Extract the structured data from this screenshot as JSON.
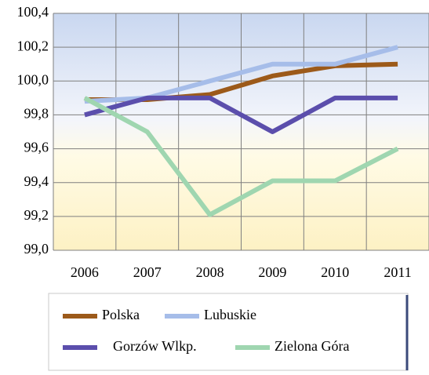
{
  "chart_data": {
    "type": "line",
    "categories": [
      "2006",
      "2007",
      "2008",
      "2009",
      "2010",
      "2011"
    ],
    "series": [
      {
        "name": "Polska",
        "color": "#9c5a1a",
        "values": [
          99.89,
          99.89,
          99.92,
          100.03,
          100.09,
          100.1
        ]
      },
      {
        "name": "Lubuskie",
        "color": "#a6bde9",
        "values": [
          99.88,
          99.9,
          100.0,
          100.1,
          100.1,
          100.2
        ]
      },
      {
        "name": "Gorzów Wlkp.",
        "color": "#5b4eac",
        "values": [
          99.8,
          99.9,
          99.9,
          99.7,
          99.9,
          99.9
        ]
      },
      {
        "name": "Zielona Góra",
        "color": "#9fd6b0",
        "values": [
          99.9,
          99.7,
          99.21,
          99.41,
          99.41,
          99.6
        ]
      }
    ],
    "ylim": [
      99.0,
      100.4
    ],
    "yticks": [
      {
        "value": 99.0,
        "label": "99,0"
      },
      {
        "value": 99.2,
        "label": "99,2"
      },
      {
        "value": 99.4,
        "label": "99,4"
      },
      {
        "value": 99.6,
        "label": "99,6"
      },
      {
        "value": 99.8,
        "label": "99,8"
      },
      {
        "value": 100.0,
        "label": "100,0"
      },
      {
        "value": 100.2,
        "label": "100,2"
      },
      {
        "value": 100.4,
        "label": "100,4"
      }
    ],
    "grid": true
  }
}
